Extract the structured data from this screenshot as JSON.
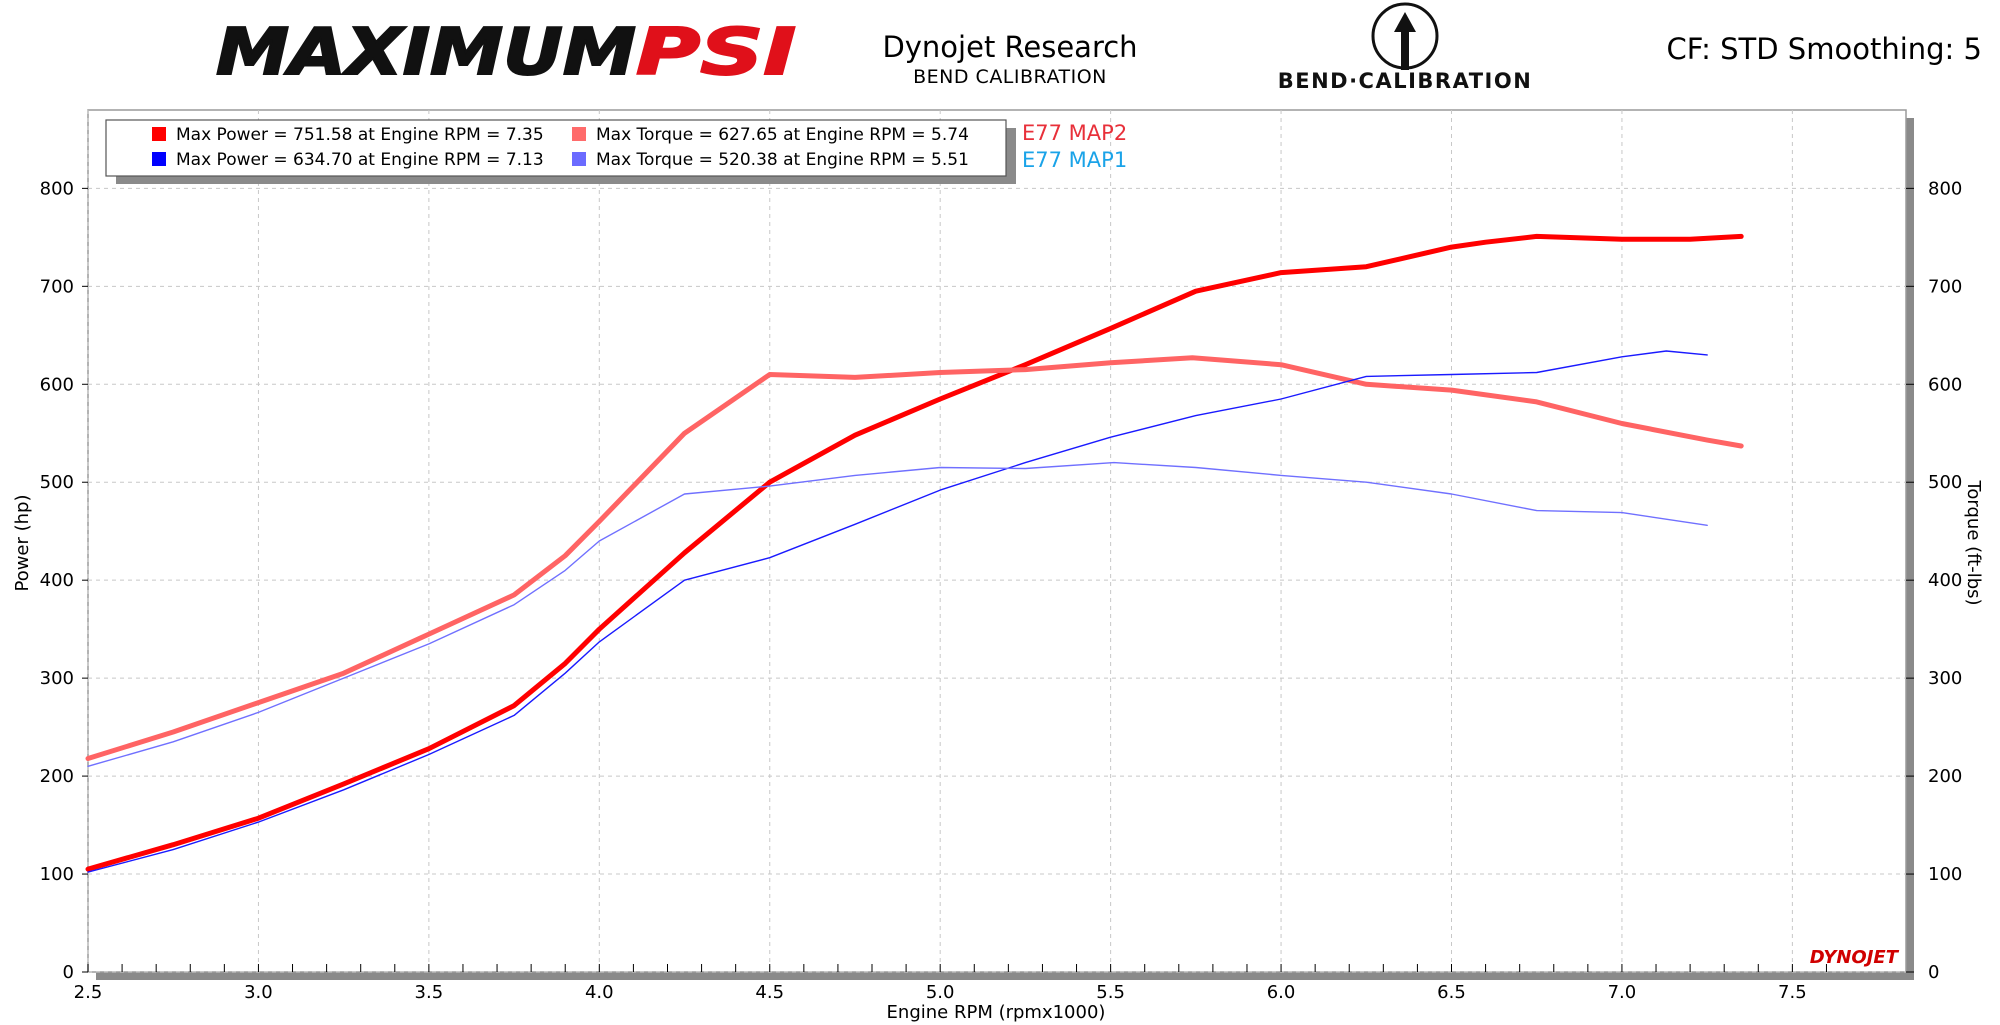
{
  "header": {
    "brand_left": "MAXIMUMPSI",
    "brand_left_a": "MAXIMUM",
    "brand_left_b": "PSI",
    "title": "Dynojet Research",
    "subtitle": "BEND CALIBRATION",
    "brand_right": "BEND·CALIBRATION",
    "settings": "CF: STD Smoothing: 5"
  },
  "legend": {
    "entries": [
      {
        "text": "Max Power = 751.58 at Engine RPM = 7.35",
        "color": "#ff0000"
      },
      {
        "text": "Max Torque = 627.65 at Engine RPM = 5.74",
        "color": "#ff6b6b"
      },
      {
        "text": "Max Power = 634.70 at Engine RPM = 7.13",
        "color": "#0000ff"
      },
      {
        "text": "Max Torque = 520.38 at Engine RPM = 5.51",
        "color": "#6b6bff"
      }
    ],
    "run_labels": [
      {
        "text": "E77 MAP2",
        "color": "#e8303a"
      },
      {
        "text": "E77 MAP1",
        "color": "#1aa3e8"
      }
    ]
  },
  "watermark": "DYNOJET",
  "chart_data": {
    "type": "line",
    "xlabel": "Engine RPM (rpmx1000)",
    "ylabel": "Power (hp)",
    "y2label": "Torque (ft-lbs)",
    "xlim": [
      2.5,
      7.7
    ],
    "ylim": [
      0,
      880
    ],
    "xticks": [
      "2.5",
      "3.0",
      "3.5",
      "4.0",
      "4.5",
      "5.0",
      "5.5",
      "6.0",
      "6.5",
      "7.0",
      "7.5"
    ],
    "yticks": [
      "0",
      "100",
      "200",
      "300",
      "400",
      "500",
      "600",
      "700",
      "800"
    ],
    "grid": true,
    "series": [
      {
        "name": "E77 MAP2",
        "measure": "power",
        "color": "#ff0000",
        "width": 5,
        "x": [
          2.5,
          2.75,
          3.0,
          3.25,
          3.5,
          3.75,
          3.9,
          4.0,
          4.25,
          4.5,
          4.75,
          5.0,
          5.25,
          5.5,
          5.75,
          6.0,
          6.25,
          6.5,
          6.6,
          6.75,
          7.0,
          7.2,
          7.35
        ],
        "y": [
          105,
          130,
          157,
          192,
          228,
          272,
          315,
          350,
          428,
          500,
          548,
          585,
          620,
          657,
          695,
          714,
          720,
          740,
          745,
          751,
          748,
          748,
          751
        ]
      },
      {
        "name": "E77 MAP2",
        "measure": "torque",
        "color": "#ff6464",
        "width": 5,
        "x": [
          2.5,
          2.75,
          3.0,
          3.25,
          3.5,
          3.75,
          3.9,
          4.0,
          4.25,
          4.5,
          4.75,
          5.0,
          5.25,
          5.5,
          5.74,
          6.0,
          6.25,
          6.5,
          6.75,
          7.0,
          7.25,
          7.35
        ],
        "y": [
          218,
          245,
          275,
          305,
          345,
          385,
          425,
          460,
          550,
          610,
          607,
          612,
          615,
          622,
          627,
          620,
          600,
          594,
          582,
          560,
          543,
          537
        ]
      },
      {
        "name": "E77 MAP1",
        "measure": "power",
        "color": "#1a1aff",
        "width": 1.4,
        "x": [
          2.5,
          2.75,
          3.0,
          3.25,
          3.5,
          3.75,
          3.9,
          4.0,
          4.25,
          4.5,
          4.75,
          5.0,
          5.25,
          5.5,
          5.75,
          6.0,
          6.25,
          6.5,
          6.75,
          7.0,
          7.13,
          7.25
        ],
        "y": [
          102,
          125,
          153,
          186,
          222,
          262,
          305,
          337,
          400,
          423,
          457,
          492,
          520,
          546,
          568,
          585,
          608,
          610,
          612,
          628,
          634,
          630
        ]
      },
      {
        "name": "E77 MAP1",
        "measure": "torque",
        "color": "#7070ff",
        "width": 1.4,
        "x": [
          2.5,
          2.75,
          3.0,
          3.25,
          3.5,
          3.75,
          3.9,
          4.0,
          4.25,
          4.5,
          4.75,
          5.0,
          5.25,
          5.51,
          5.75,
          6.0,
          6.25,
          6.5,
          6.75,
          7.0,
          7.25
        ],
        "y": [
          210,
          235,
          265,
          300,
          335,
          375,
          410,
          440,
          488,
          496,
          507,
          515,
          514,
          520,
          515,
          507,
          500,
          488,
          471,
          469,
          456
        ]
      }
    ]
  }
}
